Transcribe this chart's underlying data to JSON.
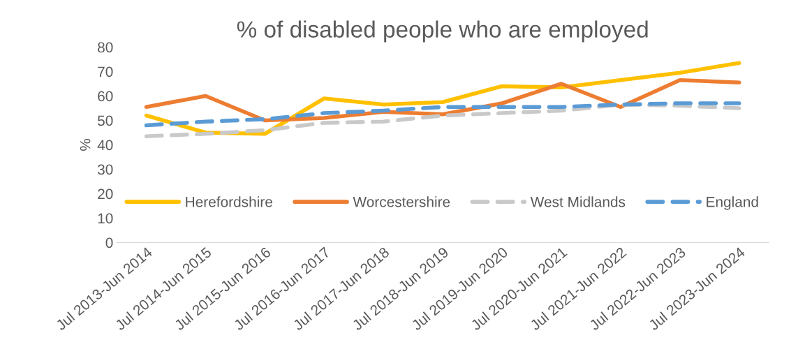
{
  "chart_data": {
    "type": "line",
    "title": "% of disabled people who are employed",
    "ylabel": "%",
    "categories": [
      "Jul 2013-Jun 2014",
      "Jul 2014-Jun 2015",
      "Jul 2015-Jun 2016",
      "Jul 2016-Jun 2017",
      "Jul 2017-Jun 2018",
      "Jul 2018-Jun 2019",
      "Jul 2019-Jun 2020",
      "Jul 2020-Jun 2021",
      "Jul 2021-Jun 2022",
      "Jul 2022-Jun 2023",
      "Jul 2023-Jun 2024"
    ],
    "series": [
      {
        "name": "Herefordshire",
        "color": "#ffc000",
        "line_style": "solid",
        "values": [
          52,
          45,
          44.5,
          59,
          56.5,
          57.5,
          64,
          63.5,
          66.5,
          69.5,
          73.5
        ]
      },
      {
        "name": "Worcestershire",
        "color": "#ed7d31",
        "line_style": "solid",
        "values": [
          55.5,
          60,
          50,
          51,
          53.5,
          52.5,
          57,
          65,
          55.5,
          66.5,
          65.5
        ]
      },
      {
        "name": "West Midlands",
        "color": "#c9c9c9",
        "line_style": "dashed",
        "values": [
          43.5,
          44.5,
          46,
          49,
          49.5,
          52,
          53,
          54,
          56.5,
          56,
          55
        ]
      },
      {
        "name": "England",
        "color": "#5b9bd5",
        "line_style": "dashed",
        "values": [
          48,
          49.5,
          50.5,
          53,
          54,
          55.5,
          55.5,
          55.5,
          56.5,
          57,
          57
        ]
      }
    ],
    "ylim": [
      0,
      80
    ],
    "yticks": [
      0,
      10,
      20,
      30,
      40,
      50,
      60,
      70,
      80
    ],
    "grid": false,
    "legend": "bottom",
    "marker": "none"
  }
}
